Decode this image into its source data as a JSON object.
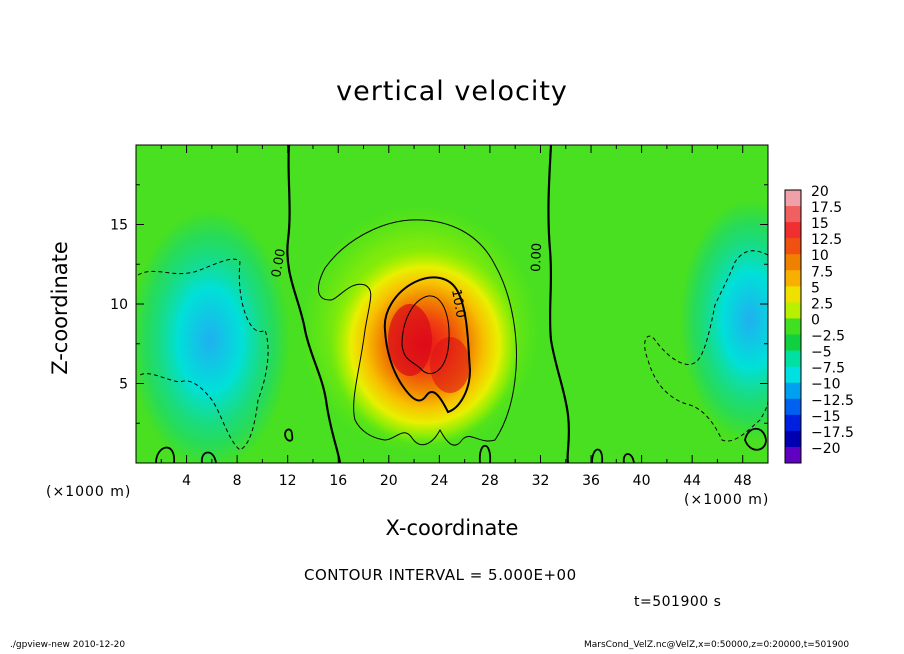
{
  "chart_data": {
    "type": "heatmap",
    "title": "vertical velocity",
    "xlabel": "X-coordinate",
    "ylabel": "Z-coordinate",
    "x_unit": "(×1000 m)",
    "y_unit": "(×1000 m)",
    "xlim": [
      0,
      50
    ],
    "ylim": [
      0,
      20
    ],
    "x_ticks": [
      "4",
      "8",
      "12",
      "16",
      "20",
      "24",
      "28",
      "32",
      "36",
      "40",
      "44",
      "48"
    ],
    "y_ticks": [
      "5",
      "10",
      "15"
    ],
    "colorbar_labels": [
      "20",
      "17.5",
      "15",
      "12.5",
      "10",
      "7.5",
      "5",
      "2.5",
      "0",
      "−2.5",
      "−5",
      "−7.5",
      "−10",
      "−12.5",
      "−15",
      "−17.5",
      "−20"
    ],
    "colorbar_colors": [
      "#f0a0a8",
      "#f06060",
      "#f03030",
      "#f05010",
      "#f08000",
      "#f8b000",
      "#f0e000",
      "#b8f000",
      "#40e020",
      "#10d040",
      "#00e0a0",
      "#00e0e0",
      "#00a0f0",
      "#0060f0",
      "#0020e0",
      "#0000b0",
      "#6000c0"
    ],
    "contour_labels": [
      "0.00",
      "0.00",
      "10.0"
    ],
    "contour_interval": "CONTOUR INTERVAL = 5.000E+00",
    "time": "t=501900 s",
    "grid": false,
    "colorbar_position": "right"
  },
  "footer": {
    "left": "./gpview-new  2010-12-20",
    "right": "MarsCond_VelZ.nc@VelZ,x=0:50000,z=0:20000,t=501900"
  }
}
